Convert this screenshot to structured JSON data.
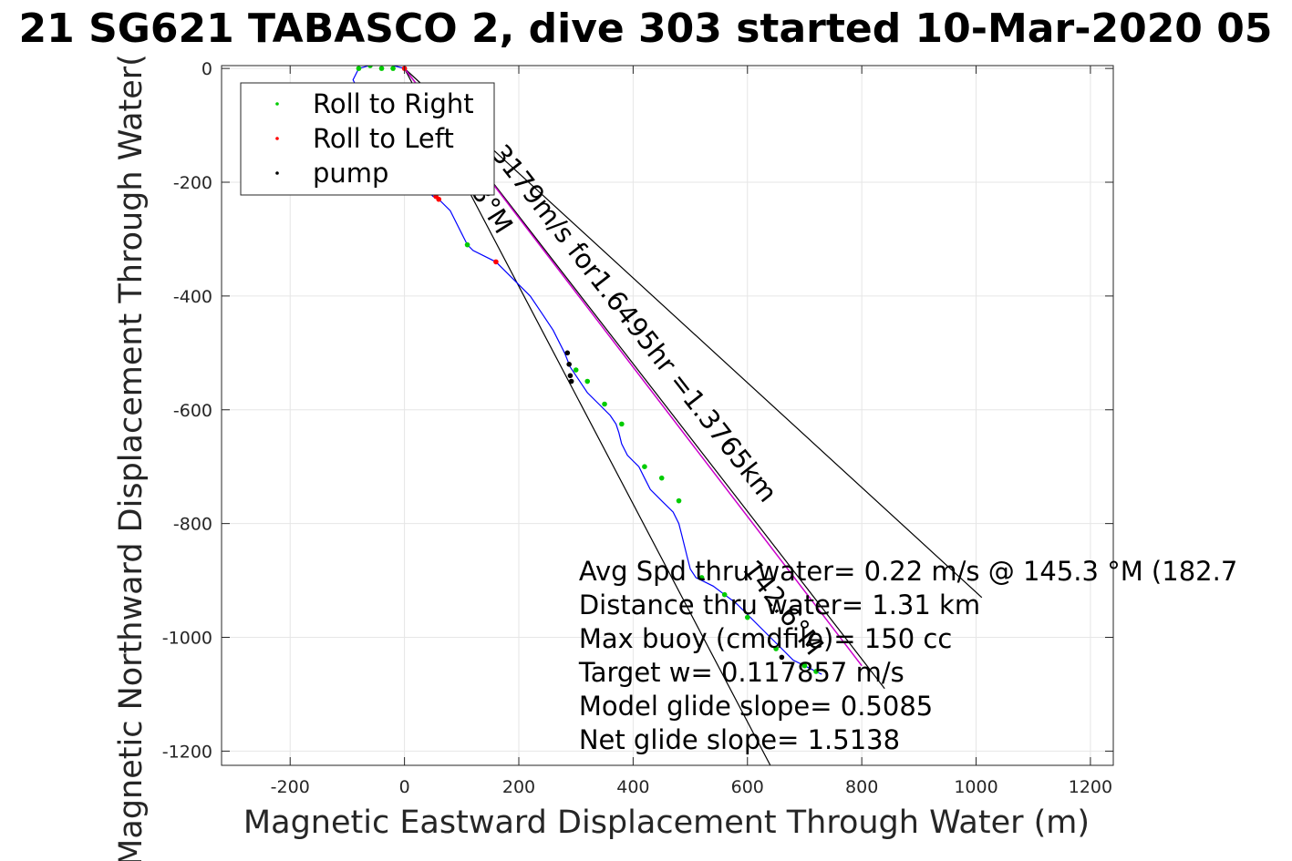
{
  "colors": {
    "track": "#0000ff",
    "roll_right": "#00cc00",
    "roll_left": "#ff0000",
    "pump": "#000000",
    "net_path": "#cc00cc",
    "guide": "#000000",
    "grid": "#e6e6e6"
  },
  "chart_data": {
    "type": "line",
    "title": "21 SG621 TABASCO 2, dive 303 started 10-Mar-2020 05",
    "xlabel": "Magnetic Eastward Displacement Through Water (m)",
    "ylabel": "Magnetic Northward Displacement Through Water(",
    "xlim": [
      -320,
      1240
    ],
    "ylim": [
      -1225,
      5
    ],
    "xticks": [
      "-200",
      "0",
      "200",
      "400",
      "600",
      "800",
      "1000",
      "1200"
    ],
    "yticks": [
      "0",
      "-200",
      "-400",
      "-600",
      "-800",
      "-1000",
      "-1200"
    ],
    "grid": true,
    "legend": {
      "placement": "top-left",
      "entries": [
        "Roll to Right",
        "Roll to Left",
        "pump"
      ]
    },
    "series": [
      {
        "name": "track",
        "x": [
          0,
          -20,
          -50,
          -80,
          -90,
          -80,
          -60,
          -40,
          -20,
          0,
          10,
          20,
          25,
          30,
          40,
          50,
          60,
          80,
          100,
          110,
          120,
          140,
          160,
          180,
          200,
          220,
          240,
          260,
          270,
          280,
          290,
          300,
          310,
          320,
          340,
          360,
          370,
          375,
          380,
          390,
          400,
          410,
          420,
          430,
          450,
          470,
          480,
          485,
          490,
          495,
          500,
          510,
          520,
          540,
          560,
          580,
          600,
          620,
          640,
          660,
          680,
          700,
          720,
          730
        ],
        "y": [
          0,
          5,
          8,
          0,
          -20,
          -40,
          -60,
          -80,
          -100,
          -120,
          -140,
          -160,
          -180,
          -200,
          -215,
          -225,
          -230,
          -250,
          -290,
          -310,
          -320,
          -330,
          -340,
          -360,
          -380,
          -400,
          -430,
          -460,
          -480,
          -500,
          -525,
          -540,
          -555,
          -570,
          -590,
          -610,
          -625,
          -640,
          -660,
          -680,
          -690,
          -700,
          -720,
          -740,
          -760,
          -780,
          -800,
          -820,
          -840,
          -860,
          -880,
          -895,
          -900,
          -910,
          -925,
          -940,
          -960,
          -980,
          -1000,
          -1020,
          -1040,
          -1050,
          -1060,
          -1065
        ]
      },
      {
        "name": "Roll to Right",
        "x": [
          -80,
          -60,
          -40,
          -20,
          110,
          300,
          320,
          350,
          380,
          420,
          450,
          480,
          520,
          560,
          600,
          650,
          700,
          720
        ],
        "y": [
          0,
          5,
          0,
          0,
          -310,
          -530,
          -550,
          -590,
          -625,
          -700,
          -720,
          -760,
          -895,
          -925,
          -965,
          -1020,
          -1050,
          -1060
        ]
      },
      {
        "name": "Roll to Left",
        "x": [
          0,
          55,
          60,
          160
        ],
        "y": [
          0,
          -225,
          -230,
          -340
        ]
      },
      {
        "name": "pump",
        "x": [
          285,
          288,
          290,
          292,
          660
        ],
        "y": [
          -500,
          -520,
          -540,
          -550,
          -1035
        ]
      }
    ],
    "annotations": [
      "3179m/s for1.6495hr =1.3765km",
      "142.6°M",
      "8°M"
    ],
    "stats": [
      "Avg Spd thru water=  0.22 m/s @ 145.3 °M (182.7",
      "Distance thru water=  1.31 km",
      "Max buoy (cmdfile)= 150 cc",
      "Target w= 0.117857 m/s",
      "Model glide slope= 0.5085",
      "Net glide slope= 1.5138"
    ]
  }
}
